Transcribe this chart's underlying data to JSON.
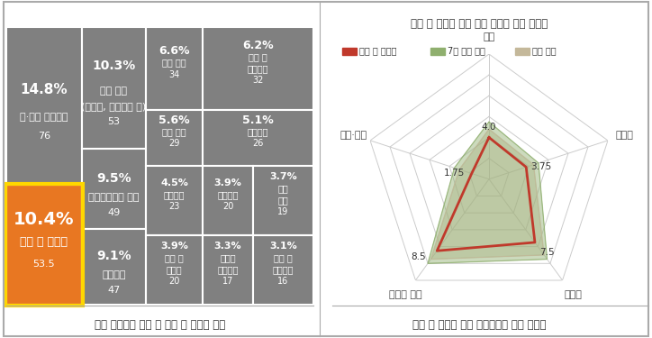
{
  "treemap_title": "전체 건설현장 사고 중 관로 및 토공사 비중",
  "radar_title": "관로 및 토공사 주요 사고 유형별 발생 위험도",
  "radar_caption": "관로 및 토공사 주요 사고유형별 발생 위험도",
  "treemap_caption": "전체 건설현장 사고 중 관로 및 토공사 비중",
  "blocks": [
    {
      "label": "내·외부 마감공사\n76",
      "pct": "14.8%",
      "value": 14.8,
      "color": "#808080",
      "text_color": "#ffffff",
      "fontsize_pct": 10,
      "fontsize_label": 8
    },
    {
      "label": "관로 및 토공사\n53.5",
      "pct": "10.4%",
      "value": 10.4,
      "color": "#E87722",
      "text_color": "#ffffff",
      "fontsize_pct": 13,
      "fontsize_label": 9,
      "highlight": true
    },
    {
      "label": "기타 공사\n(목공사, 수장공사 등)\n53",
      "pct": "10.3%",
      "value": 10.3,
      "color": "#808080",
      "text_color": "#ffffff",
      "fontsize_pct": 10,
      "fontsize_label": 8
    },
    {
      "label": "철근콘크리트 공사\n49",
      "pct": "9.5%",
      "value": 9.5,
      "color": "#808080",
      "text_color": "#ffffff",
      "fontsize_pct": 10,
      "fontsize_label": 8
    },
    {
      "label": "가설공사\n47",
      "pct": "9.1%",
      "value": 9.1,
      "color": "#808080",
      "text_color": "#ffffff",
      "fontsize_pct": 10,
      "fontsize_label": 8
    },
    {
      "label": "철골 공사\n34",
      "pct": "6.6%",
      "value": 6.6,
      "color": "#808080",
      "text_color": "#ffffff",
      "fontsize_pct": 9,
      "fontsize_label": 7
    },
    {
      "label": "해체 및\n철거공사\n32",
      "pct": "6.2%",
      "value": 6.2,
      "color": "#808080",
      "text_color": "#ffffff",
      "fontsize_pct": 9,
      "fontsize_label": 7
    },
    {
      "label": "티널 공사\n29",
      "pct": "5.6%",
      "value": 5.6,
      "color": "#808080",
      "text_color": "#ffffff",
      "fontsize_pct": 9,
      "fontsize_label": 7
    },
    {
      "label": "수장공사\n26",
      "pct": "5.1%",
      "value": 5.1,
      "color": "#808080",
      "text_color": "#ffffff",
      "fontsize_pct": 9,
      "fontsize_label": 7
    },
    {
      "label": "교량공사\n23",
      "pct": "4.5%",
      "value": 4.5,
      "color": "#808080",
      "text_color": "#ffffff",
      "fontsize_pct": 8,
      "fontsize_label": 7
    },
    {
      "label": "금속공사\n20",
      "pct": "3.9%",
      "value": 3.9,
      "color": "#808080",
      "text_color": "#ffffff",
      "fontsize_pct": 8,
      "fontsize_label": 7
    },
    {
      "label": "하천\n공사\n19",
      "pct": "3.7%",
      "value": 3.7,
      "color": "#808080",
      "text_color": "#ffffff",
      "fontsize_pct": 8,
      "fontsize_label": 7
    },
    {
      "label": "타일 및\n돌공사\n20",
      "pct": "3.9%",
      "value": 3.9,
      "color": "#808080",
      "text_color": "#ffffff",
      "fontsize_pct": 8,
      "fontsize_label": 7
    },
    {
      "label": "건축물\n부대공사\n17",
      "pct": "3.3%",
      "value": 3.3,
      "color": "#808080",
      "text_color": "#ffffff",
      "fontsize_pct": 8,
      "fontsize_label": 7
    },
    {
      "label": "창호 및\n유리공사\n16",
      "pct": "3.1%",
      "value": 3.1,
      "color": "#808080",
      "text_color": "#ffffff",
      "fontsize_pct": 8,
      "fontsize_label": 7
    }
  ],
  "radar_categories": [
    "꺼임",
    "넘어짐",
    "떨어짐",
    "물체에 맞음",
    "절단·베임"
  ],
  "radar_series": {
    "관로 및 토공사": [
      4.0,
      3.75,
      7.5,
      8.5,
      1.75
    ],
    "7대 공종 평균": [
      5.5,
      5.0,
      9.5,
      10.0,
      3.5
    ],
    "전체 평균": [
      4.8,
      4.5,
      9.0,
      9.5,
      3.0
    ]
  },
  "radar_colors": {
    "관로 및 토공사": "#C0392B",
    "7대 공종 평균": "#8FAF6E",
    "전체 평균": "#C4B89A"
  },
  "radar_max": 12,
  "radar_levels": [
    2,
    4,
    6,
    8,
    10,
    12
  ]
}
